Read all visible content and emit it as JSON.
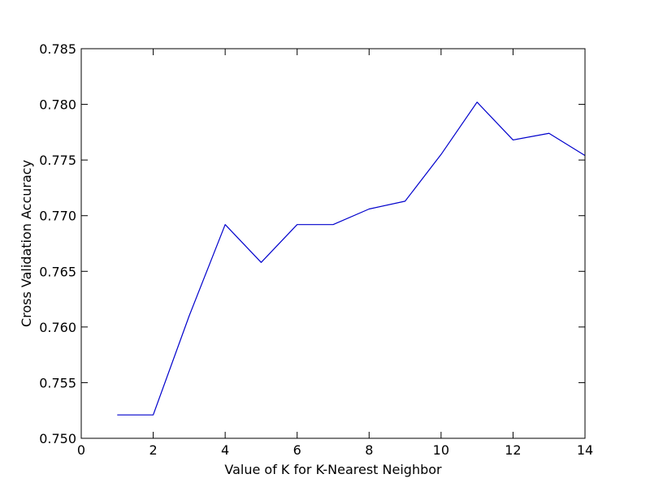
{
  "chart_data": {
    "type": "line",
    "title": "",
    "xlabel": "Value of K for K-Nearest Neighbor",
    "ylabel": "Cross Validation Accuracy",
    "xlim": [
      0,
      14
    ],
    "ylim": [
      0.75,
      0.785
    ],
    "x_ticks": [
      0,
      2,
      4,
      6,
      8,
      10,
      12,
      14
    ],
    "x_tick_labels": [
      "0",
      "2",
      "4",
      "6",
      "8",
      "10",
      "12",
      "14"
    ],
    "y_ticks": [
      0.75,
      0.755,
      0.76,
      0.765,
      0.77,
      0.775,
      0.78,
      0.785
    ],
    "y_tick_labels": [
      "0.750",
      "0.755",
      "0.760",
      "0.765",
      "0.770",
      "0.775",
      "0.780",
      "0.785"
    ],
    "grid": false,
    "series": [
      {
        "color": "#0000cc",
        "x": [
          1,
          2,
          3,
          4,
          5,
          6,
          7,
          8,
          9,
          10,
          11,
          12,
          13,
          14
        ],
        "y": [
          0.7521,
          0.7521,
          0.761,
          0.7692,
          0.7658,
          0.7692,
          0.7692,
          0.7706,
          0.7713,
          0.7755,
          0.7802,
          0.7768,
          0.7774,
          0.7754
        ]
      }
    ]
  }
}
